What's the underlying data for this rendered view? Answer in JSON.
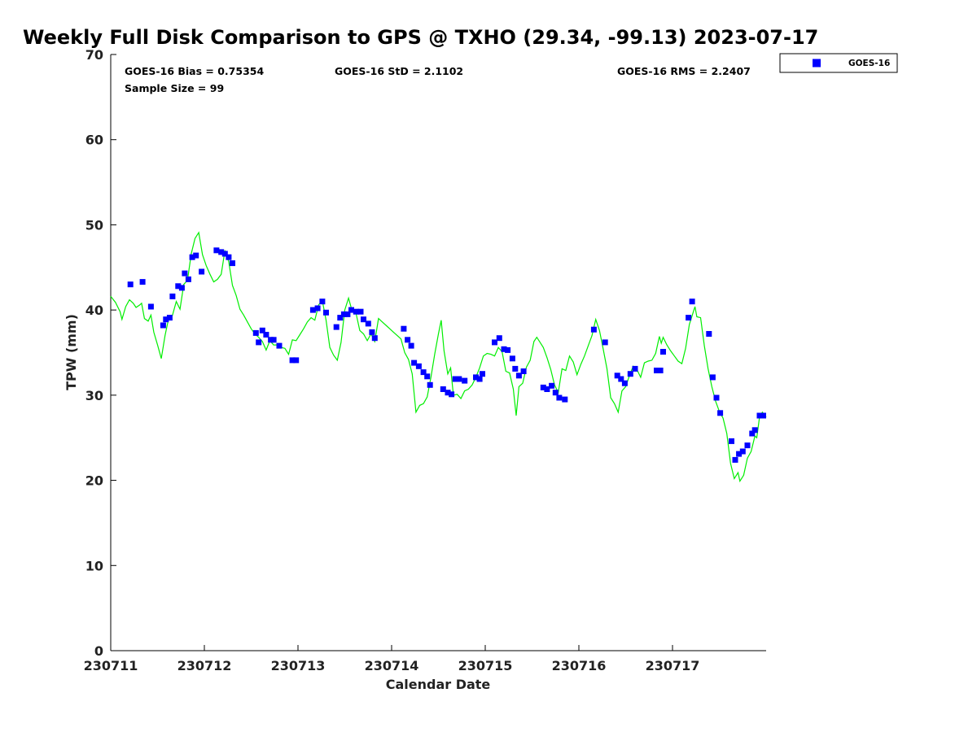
{
  "chart_data": {
    "type": "scatter",
    "title": "Weekly Full Disk Comparison to GPS @ TXHO (29.34, -99.13) 2023-07-17",
    "xlabel": "Calendar Date",
    "ylabel": "TPW (mm)",
    "xlim": [
      0,
      7
    ],
    "ylim": [
      0,
      70
    ],
    "x_ticks": [
      {
        "value": 0,
        "label": "230711"
      },
      {
        "value": 1,
        "label": "230712"
      },
      {
        "value": 2,
        "label": "230713"
      },
      {
        "value": 3,
        "label": "230714"
      },
      {
        "value": 4,
        "label": "230715"
      },
      {
        "value": 5,
        "label": "230716"
      },
      {
        "value": 6,
        "label": "230717"
      }
    ],
    "y_ticks": [
      {
        "value": 0,
        "label": "0"
      },
      {
        "value": 10,
        "label": "10"
      },
      {
        "value": 20,
        "label": "20"
      },
      {
        "value": 30,
        "label": "30"
      },
      {
        "value": 40,
        "label": "40"
      },
      {
        "value": 50,
        "label": "50"
      },
      {
        "value": 60,
        "label": "60"
      },
      {
        "value": 70,
        "label": "70"
      }
    ],
    "grid": false,
    "legend_position": "top-right, outside plot",
    "stats": {
      "bias": "GOES-16 Bias = 0.75354",
      "std": "GOES-16 StD = 2.1102",
      "rms": "GOES-16 RMS = 2.2407",
      "sample_size": "Sample Size = 99"
    },
    "series": [
      {
        "name": "GOES-16",
        "kind": "markers",
        "marker": "square",
        "color": "#0000ff",
        "points": [
          [
            0.21,
            43.0
          ],
          [
            0.34,
            43.3
          ],
          [
            0.43,
            40.4
          ],
          [
            0.56,
            38.2
          ],
          [
            0.59,
            38.9
          ],
          [
            0.63,
            39.1
          ],
          [
            0.66,
            41.6
          ],
          [
            0.72,
            42.8
          ],
          [
            0.76,
            42.6
          ],
          [
            0.79,
            44.3
          ],
          [
            0.83,
            43.6
          ],
          [
            0.87,
            46.2
          ],
          [
            0.91,
            46.4
          ],
          [
            0.97,
            44.5
          ],
          [
            1.13,
            47.0
          ],
          [
            1.18,
            46.8
          ],
          [
            1.22,
            46.6
          ],
          [
            1.26,
            46.2
          ],
          [
            1.3,
            45.5
          ],
          [
            1.55,
            37.3
          ],
          [
            1.58,
            36.2
          ],
          [
            1.62,
            37.6
          ],
          [
            1.66,
            37.1
          ],
          [
            1.71,
            36.5
          ],
          [
            1.74,
            36.5
          ],
          [
            1.8,
            35.8
          ],
          [
            1.94,
            34.1
          ],
          [
            1.98,
            34.1
          ],
          [
            2.16,
            40.0
          ],
          [
            2.21,
            40.2
          ],
          [
            2.26,
            41.0
          ],
          [
            2.3,
            39.7
          ],
          [
            2.41,
            38.0
          ],
          [
            2.45,
            39.1
          ],
          [
            2.49,
            39.5
          ],
          [
            2.53,
            39.5
          ],
          [
            2.57,
            40.0
          ],
          [
            2.62,
            39.8
          ],
          [
            2.67,
            39.8
          ],
          [
            2.7,
            38.9
          ],
          [
            2.75,
            38.4
          ],
          [
            2.79,
            37.4
          ],
          [
            2.82,
            36.7
          ],
          [
            3.13,
            37.8
          ],
          [
            3.17,
            36.5
          ],
          [
            3.21,
            35.8
          ],
          [
            3.24,
            33.8
          ],
          [
            3.29,
            33.4
          ],
          [
            3.34,
            32.7
          ],
          [
            3.38,
            32.2
          ],
          [
            3.41,
            31.2
          ],
          [
            3.55,
            30.7
          ],
          [
            3.6,
            30.3
          ],
          [
            3.64,
            30.1
          ],
          [
            3.68,
            31.9
          ],
          [
            3.72,
            31.9
          ],
          [
            3.78,
            31.7
          ],
          [
            3.9,
            32.1
          ],
          [
            3.94,
            31.9
          ],
          [
            3.97,
            32.5
          ],
          [
            4.1,
            36.2
          ],
          [
            4.15,
            36.7
          ],
          [
            4.2,
            35.4
          ],
          [
            4.24,
            35.3
          ],
          [
            4.29,
            34.3
          ],
          [
            4.32,
            33.1
          ],
          [
            4.36,
            32.3
          ],
          [
            4.41,
            32.8
          ],
          [
            4.62,
            30.9
          ],
          [
            4.66,
            30.7
          ],
          [
            4.71,
            31.1
          ],
          [
            4.75,
            30.3
          ],
          [
            4.79,
            29.7
          ],
          [
            4.85,
            29.5
          ],
          [
            5.16,
            37.7
          ],
          [
            5.28,
            36.2
          ],
          [
            5.41,
            32.3
          ],
          [
            5.45,
            31.9
          ],
          [
            5.49,
            31.4
          ],
          [
            5.55,
            32.5
          ],
          [
            5.6,
            33.1
          ],
          [
            5.83,
            32.9
          ],
          [
            5.87,
            32.9
          ],
          [
            5.9,
            35.1
          ],
          [
            6.17,
            39.1
          ],
          [
            6.21,
            41.0
          ],
          [
            6.39,
            37.2
          ],
          [
            6.43,
            32.1
          ],
          [
            6.47,
            29.7
          ],
          [
            6.51,
            27.9
          ],
          [
            6.63,
            24.6
          ],
          [
            6.67,
            22.4
          ],
          [
            6.71,
            23.1
          ],
          [
            6.75,
            23.4
          ],
          [
            6.8,
            24.1
          ],
          [
            6.85,
            25.5
          ],
          [
            6.88,
            25.9
          ],
          [
            6.93,
            27.6
          ],
          [
            6.97,
            27.6
          ]
        ]
      },
      {
        "name": "",
        "kind": "line",
        "color": "#00ee00",
        "points": [
          [
            0.0,
            41.6
          ],
          [
            0.05,
            40.9
          ],
          [
            0.1,
            39.8
          ],
          [
            0.12,
            38.9
          ],
          [
            0.16,
            40.4
          ],
          [
            0.2,
            41.2
          ],
          [
            0.24,
            40.8
          ],
          [
            0.27,
            40.3
          ],
          [
            0.31,
            40.6
          ],
          [
            0.33,
            40.8
          ],
          [
            0.36,
            39.0
          ],
          [
            0.4,
            38.7
          ],
          [
            0.43,
            39.4
          ],
          [
            0.46,
            37.4
          ],
          [
            0.5,
            35.9
          ],
          [
            0.54,
            34.3
          ],
          [
            0.58,
            37.0
          ],
          [
            0.62,
            39.1
          ],
          [
            0.66,
            39.4
          ],
          [
            0.7,
            41.0
          ],
          [
            0.74,
            40.1
          ],
          [
            0.78,
            43.0
          ],
          [
            0.82,
            43.5
          ],
          [
            0.86,
            46.6
          ],
          [
            0.9,
            48.4
          ],
          [
            0.94,
            49.1
          ],
          [
            0.98,
            46.5
          ],
          [
            1.02,
            45.2
          ],
          [
            1.06,
            44.2
          ],
          [
            1.1,
            43.3
          ],
          [
            1.14,
            43.6
          ],
          [
            1.18,
            44.2
          ],
          [
            1.22,
            47.0
          ],
          [
            1.26,
            45.7
          ],
          [
            1.3,
            42.9
          ],
          [
            1.34,
            41.7
          ],
          [
            1.38,
            40.1
          ],
          [
            1.42,
            39.4
          ],
          [
            1.46,
            38.6
          ],
          [
            1.5,
            37.8
          ],
          [
            1.54,
            37.2
          ],
          [
            1.58,
            36.8
          ],
          [
            1.62,
            36.3
          ],
          [
            1.66,
            35.3
          ],
          [
            1.7,
            36.4
          ],
          [
            1.74,
            35.9
          ],
          [
            1.78,
            35.9
          ],
          [
            1.82,
            35.6
          ],
          [
            1.86,
            35.5
          ],
          [
            1.9,
            34.8
          ],
          [
            1.94,
            36.5
          ],
          [
            1.98,
            36.4
          ],
          [
            2.02,
            37.1
          ],
          [
            2.06,
            37.8
          ],
          [
            2.1,
            38.6
          ],
          [
            2.14,
            39.1
          ],
          [
            2.18,
            38.8
          ],
          [
            2.22,
            40.6
          ],
          [
            2.26,
            41.1
          ],
          [
            2.3,
            38.8
          ],
          [
            2.34,
            35.6
          ],
          [
            2.38,
            34.7
          ],
          [
            2.42,
            34.1
          ],
          [
            2.46,
            36.2
          ],
          [
            2.5,
            40.0
          ],
          [
            2.54,
            41.4
          ],
          [
            2.58,
            39.8
          ],
          [
            2.62,
            39.6
          ],
          [
            2.66,
            37.6
          ],
          [
            2.7,
            37.2
          ],
          [
            2.74,
            36.4
          ],
          [
            2.78,
            37.2
          ],
          [
            2.82,
            36.3
          ],
          [
            2.86,
            39.0
          ],
          [
            2.9,
            38.6
          ],
          [
            2.94,
            38.2
          ],
          [
            2.98,
            37.8
          ],
          [
            3.02,
            37.4
          ],
          [
            3.06,
            37.0
          ],
          [
            3.1,
            36.6
          ],
          [
            3.14,
            35.0
          ],
          [
            3.18,
            34.2
          ],
          [
            3.22,
            32.5
          ],
          [
            3.26,
            28.0
          ],
          [
            3.3,
            28.8
          ],
          [
            3.34,
            29.0
          ],
          [
            3.38,
            29.8
          ],
          [
            3.42,
            32.1
          ],
          [
            3.46,
            34.8
          ],
          [
            3.5,
            37.2
          ],
          [
            3.53,
            38.8
          ],
          [
            3.56,
            35.2
          ],
          [
            3.6,
            32.5
          ],
          [
            3.63,
            33.2
          ],
          [
            3.66,
            30.0
          ],
          [
            3.7,
            30.1
          ],
          [
            3.74,
            29.6
          ],
          [
            3.78,
            30.5
          ],
          [
            3.82,
            30.7
          ],
          [
            3.86,
            31.2
          ],
          [
            3.9,
            32.1
          ],
          [
            3.94,
            33.2
          ],
          [
            3.98,
            34.6
          ],
          [
            4.02,
            34.9
          ],
          [
            4.06,
            34.8
          ],
          [
            4.1,
            34.6
          ],
          [
            4.14,
            35.6
          ],
          [
            4.18,
            35.1
          ],
          [
            4.22,
            32.8
          ],
          [
            4.26,
            32.6
          ],
          [
            4.3,
            30.7
          ],
          [
            4.33,
            27.6
          ],
          [
            4.36,
            31.0
          ],
          [
            4.4,
            31.4
          ],
          [
            4.44,
            33.3
          ],
          [
            4.48,
            34.1
          ],
          [
            4.52,
            36.3
          ],
          [
            4.55,
            36.8
          ],
          [
            4.58,
            36.3
          ],
          [
            4.62,
            35.6
          ],
          [
            4.66,
            34.4
          ],
          [
            4.7,
            33.0
          ],
          [
            4.74,
            31.2
          ],
          [
            4.78,
            30.3
          ],
          [
            4.82,
            33.1
          ],
          [
            4.86,
            32.9
          ],
          [
            4.9,
            34.6
          ],
          [
            4.94,
            33.9
          ],
          [
            4.98,
            32.4
          ],
          [
            5.02,
            33.6
          ],
          [
            5.06,
            34.6
          ],
          [
            5.1,
            35.8
          ],
          [
            5.14,
            37.0
          ],
          [
            5.18,
            38.9
          ],
          [
            5.22,
            37.6
          ],
          [
            5.26,
            35.4
          ],
          [
            5.3,
            33.1
          ],
          [
            5.34,
            29.7
          ],
          [
            5.38,
            29.0
          ],
          [
            5.42,
            28.0
          ],
          [
            5.46,
            30.5
          ],
          [
            5.5,
            31.0
          ],
          [
            5.54,
            32.3
          ],
          [
            5.58,
            33.4
          ],
          [
            5.62,
            33.0
          ],
          [
            5.66,
            32.1
          ],
          [
            5.7,
            33.8
          ],
          [
            5.74,
            34.0
          ],
          [
            5.78,
            34.1
          ],
          [
            5.82,
            34.9
          ],
          [
            5.86,
            36.9
          ],
          [
            5.88,
            36.1
          ],
          [
            5.9,
            36.8
          ],
          [
            5.94,
            35.9
          ],
          [
            5.98,
            35.2
          ],
          [
            6.02,
            34.6
          ],
          [
            6.06,
            34.0
          ],
          [
            6.1,
            33.7
          ],
          [
            6.14,
            35.5
          ],
          [
            6.18,
            38.3
          ],
          [
            6.22,
            39.7
          ],
          [
            6.24,
            40.4
          ],
          [
            6.26,
            39.2
          ],
          [
            6.3,
            39.1
          ],
          [
            6.34,
            35.8
          ],
          [
            6.38,
            33.1
          ],
          [
            6.42,
            31.0
          ],
          [
            6.46,
            29.3
          ],
          [
            6.5,
            28.1
          ],
          [
            6.54,
            27.3
          ],
          [
            6.58,
            25.5
          ],
          [
            6.62,
            22.0
          ],
          [
            6.66,
            20.2
          ],
          [
            6.7,
            20.9
          ],
          [
            6.72,
            19.9
          ],
          [
            6.76,
            20.6
          ],
          [
            6.8,
            22.6
          ],
          [
            6.84,
            23.4
          ],
          [
            6.88,
            25.2
          ],
          [
            6.9,
            25.0
          ],
          [
            6.93,
            27.5
          ],
          [
            6.96,
            28.0
          ],
          [
            7.0,
            27.4
          ]
        ]
      }
    ]
  }
}
